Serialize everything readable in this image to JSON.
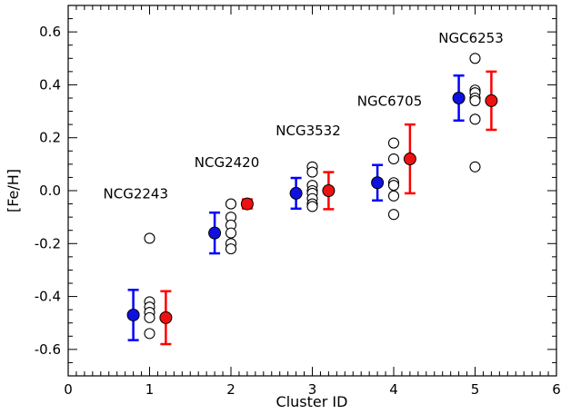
{
  "chart_data": {
    "type": "scatter",
    "xlabel": "Cluster ID",
    "ylabel": "[Fe/H]",
    "xlim": [
      0,
      6
    ],
    "ylim": [
      -0.7,
      0.7
    ],
    "x_ticks": [
      0,
      1,
      2,
      3,
      4,
      5,
      6
    ],
    "y_ticks": [
      -0.6,
      -0.4,
      -0.2,
      0.0,
      0.2,
      0.4,
      0.6
    ],
    "x_tick_labels": [
      "0",
      "1",
      "2",
      "3",
      "4",
      "5",
      "6"
    ],
    "y_tick_labels": [
      "-0.6",
      "-0.4",
      "-0.2",
      "0.0",
      "0.2",
      "0.4",
      "0.6"
    ],
    "grid": false,
    "annotations": [
      {
        "text": "NCG2243",
        "x": 0.83,
        "y": -0.03
      },
      {
        "text": "NCG2420",
        "x": 1.95,
        "y": 0.09
      },
      {
        "text": "NCG3532",
        "x": 2.95,
        "y": 0.21
      },
      {
        "text": "NGC6705",
        "x": 3.95,
        "y": 0.32
      },
      {
        "text": "NGC6253",
        "x": 4.95,
        "y": 0.56
      }
    ],
    "series": [
      {
        "marker": "open-circle",
        "color": "#000000",
        "points": [
          [
            1,
            -0.18
          ],
          [
            1,
            -0.42
          ],
          [
            1,
            -0.44
          ],
          [
            1,
            -0.46
          ],
          [
            1,
            -0.48
          ],
          [
            1,
            -0.54
          ],
          [
            2,
            -0.05
          ],
          [
            2,
            -0.1
          ],
          [
            2,
            -0.13
          ],
          [
            2,
            -0.16
          ],
          [
            2,
            -0.2
          ],
          [
            2,
            -0.22
          ],
          [
            3,
            0.09
          ],
          [
            3,
            0.07
          ],
          [
            3,
            0.02
          ],
          [
            3,
            0.0
          ],
          [
            3,
            -0.01
          ],
          [
            3,
            -0.03
          ],
          [
            3,
            -0.05
          ],
          [
            3,
            -0.06
          ],
          [
            4,
            0.18
          ],
          [
            4,
            0.12
          ],
          [
            4,
            0.03
          ],
          [
            4,
            0.02
          ],
          [
            4,
            -0.02
          ],
          [
            4,
            -0.09
          ],
          [
            5,
            0.5
          ],
          [
            5,
            0.38
          ],
          [
            5,
            0.37
          ],
          [
            5,
            0.35
          ],
          [
            5,
            0.34
          ],
          [
            5,
            0.27
          ],
          [
            5,
            0.09
          ]
        ]
      },
      {
        "marker": "filled-circle",
        "color": "#1010e0",
        "errorbar_color": "#0000ff",
        "points": [
          {
            "x": 0.8,
            "y": -0.47,
            "err": 0.095
          },
          {
            "x": 1.8,
            "y": -0.16,
            "err": 0.077
          },
          {
            "x": 2.8,
            "y": -0.01,
            "err": 0.058
          },
          {
            "x": 3.8,
            "y": 0.03,
            "err": 0.067
          },
          {
            "x": 4.8,
            "y": 0.35,
            "err": 0.085
          }
        ]
      },
      {
        "marker": "filled-circle",
        "color": "#ee1111",
        "errorbar_color": "#ff0000",
        "points": [
          {
            "x": 1.2,
            "y": -0.48,
            "err": 0.1
          },
          {
            "x": 2.2,
            "y": -0.05,
            "err": 0.017
          },
          {
            "x": 3.2,
            "y": 0.0,
            "err": 0.07
          },
          {
            "x": 4.2,
            "y": 0.12,
            "err": 0.13
          },
          {
            "x": 5.2,
            "y": 0.34,
            "err": 0.11
          }
        ]
      }
    ]
  }
}
